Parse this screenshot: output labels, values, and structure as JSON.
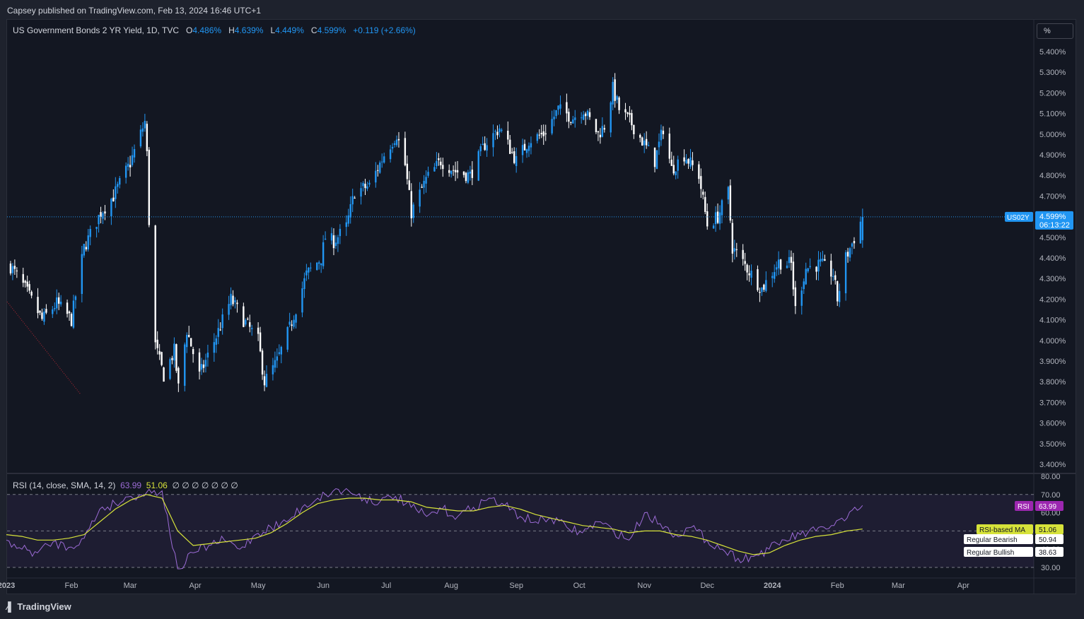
{
  "header": {
    "publisher": "Capsey published on TradingView.com, Feb 13, 2024 16:46 UTC+1"
  },
  "legend": {
    "symbol": "US Government Bonds 2 YR Yield, 1D, TVC",
    "o_label": "O",
    "o_value": "4.486%",
    "h_label": "H",
    "h_value": "4.639%",
    "l_label": "L",
    "l_value": "4.449%",
    "c_label": "C",
    "c_value": "4.599%",
    "change": "+0.119 (+2.66%)"
  },
  "scale_button": "%",
  "price_tag": {
    "ticker": "US02Y",
    "price": "4.599%",
    "countdown": "06:13:22"
  },
  "rsi_legend": {
    "title": "RSI (14, close, SMA, 14, 2)",
    "rsi_value": "63.99",
    "ma_value": "51.06",
    "extras": "∅ ∅ ∅ ∅ ∅ ∅ ∅"
  },
  "rsi_tags": {
    "rsi_label": "RSI",
    "rsi_value": "63.99",
    "ma_label": "RSI-based MA",
    "ma_value": "51.06",
    "bearish_label": "Regular Bearish",
    "bearish_value": "50.94",
    "bullish_label": "Regular Bullish",
    "bullish_value": "38.63"
  },
  "footer": {
    "brand": "TradingView"
  },
  "colors": {
    "up": "#2196f3",
    "down": "#ffffff",
    "rsi": "#9c6bd6",
    "rsi_ma": "#d6e23a",
    "background": "#131722",
    "grid": "#2a2e39"
  },
  "chart_data": {
    "type": "candlestick",
    "price_axis": {
      "ylim": [
        3.37,
        5.52
      ],
      "ticks": [
        "5.400%",
        "5.300%",
        "5.200%",
        "5.100%",
        "5.000%",
        "4.900%",
        "4.800%",
        "4.700%",
        "4.600%",
        "4.500%",
        "4.400%",
        "4.300%",
        "4.200%",
        "4.100%",
        "4.000%",
        "3.900%",
        "3.800%",
        "3.700%",
        "3.600%",
        "3.500%",
        "3.400%"
      ],
      "tick_values": [
        5.4,
        5.3,
        5.2,
        5.1,
        5.0,
        4.9,
        4.8,
        4.7,
        4.6,
        4.5,
        4.4,
        4.3,
        4.2,
        4.1,
        4.0,
        3.9,
        3.8,
        3.7,
        3.6,
        3.5,
        3.4
      ]
    },
    "time_axis": [
      "2023",
      "Feb",
      "Mar",
      "Apr",
      "May",
      "Jun",
      "Jul",
      "Aug",
      "Sep",
      "Oct",
      "Nov",
      "Dec",
      "2024",
      "Feb",
      "Mar",
      "Apr"
    ],
    "close_anchors": [
      [
        "2023-01-03",
        4.36
      ],
      [
        "2023-01-10",
        4.25
      ],
      [
        "2023-01-18",
        4.1
      ],
      [
        "2023-01-25",
        4.18
      ],
      [
        "2023-02-01",
        4.1
      ],
      [
        "2023-02-07",
        4.45
      ],
      [
        "2023-02-15",
        4.62
      ],
      [
        "2023-02-21",
        4.7
      ],
      [
        "2023-03-01",
        4.86
      ],
      [
        "2023-03-08",
        5.06
      ],
      [
        "2023-03-09",
        4.9
      ],
      [
        "2023-03-10",
        4.58
      ],
      [
        "2023-03-13",
        3.98
      ],
      [
        "2023-03-15",
        3.9
      ],
      [
        "2023-03-17",
        3.83
      ],
      [
        "2023-03-22",
        3.95
      ],
      [
        "2023-03-24",
        3.77
      ],
      [
        "2023-03-28",
        4.05
      ],
      [
        "2023-04-03",
        3.83
      ],
      [
        "2023-04-11",
        4.02
      ],
      [
        "2023-04-18",
        4.2
      ],
      [
        "2023-04-24",
        4.1
      ],
      [
        "2023-05-01",
        4.0
      ],
      [
        "2023-05-04",
        3.8
      ],
      [
        "2023-05-10",
        3.9
      ],
      [
        "2023-05-16",
        4.06
      ],
      [
        "2023-05-24",
        4.32
      ],
      [
        "2023-05-31",
        4.4
      ],
      [
        "2023-06-02",
        4.5
      ],
      [
        "2023-06-06",
        4.48
      ],
      [
        "2023-06-12",
        4.55
      ],
      [
        "2023-06-16",
        4.72
      ],
      [
        "2023-06-23",
        4.75
      ],
      [
        "2023-06-30",
        4.9
      ],
      [
        "2023-07-06",
        5.0
      ],
      [
        "2023-07-10",
        4.85
      ],
      [
        "2023-07-13",
        4.62
      ],
      [
        "2023-07-20",
        4.78
      ],
      [
        "2023-07-27",
        4.87
      ],
      [
        "2023-08-03",
        4.82
      ],
      [
        "2023-08-10",
        4.8
      ],
      [
        "2023-08-17",
        4.95
      ],
      [
        "2023-08-24",
        5.03
      ],
      [
        "2023-08-28",
        4.95
      ],
      [
        "2023-09-01",
        4.87
      ],
      [
        "2023-09-07",
        4.97
      ],
      [
        "2023-09-14",
        5.0
      ],
      [
        "2023-09-21",
        5.12
      ],
      [
        "2023-09-28",
        5.08
      ],
      [
        "2023-10-03",
        5.12
      ],
      [
        "2023-10-10",
        5.0
      ],
      [
        "2023-10-13",
        5.04
      ],
      [
        "2023-10-17",
        5.22
      ],
      [
        "2023-10-20",
        5.12
      ],
      [
        "2023-10-26",
        5.05
      ],
      [
        "2023-11-01",
        4.95
      ],
      [
        "2023-11-06",
        4.87
      ],
      [
        "2023-11-10",
        5.03
      ],
      [
        "2023-11-14",
        4.83
      ],
      [
        "2023-11-20",
        4.9
      ],
      [
        "2023-11-27",
        4.8
      ],
      [
        "2023-12-01",
        4.56
      ],
      [
        "2023-12-06",
        4.6
      ],
      [
        "2023-12-11",
        4.72
      ],
      [
        "2023-12-13",
        4.45
      ],
      [
        "2023-12-20",
        4.35
      ],
      [
        "2023-12-27",
        4.25
      ],
      [
        "2024-01-04",
        4.38
      ],
      [
        "2024-01-10",
        4.37
      ],
      [
        "2024-01-12",
        4.15
      ],
      [
        "2024-01-17",
        4.35
      ],
      [
        "2024-01-24",
        4.37
      ],
      [
        "2024-01-30",
        4.32
      ],
      [
        "2024-02-01",
        4.2
      ],
      [
        "2024-02-05",
        4.4
      ],
      [
        "2024-02-08",
        4.47
      ],
      [
        "2024-02-13",
        4.599
      ]
    ],
    "rsi_panel": {
      "ylim": [
        30,
        80
      ],
      "ticks": [
        "80.00",
        "70.00",
        "60.00",
        "50.00",
        "40.00",
        "30.00"
      ],
      "tick_values": [
        80,
        70,
        60,
        50,
        40,
        30
      ],
      "levels": [
        70,
        50,
        30
      ],
      "series": [
        {
          "name": "RSI",
          "values": [
            45,
            40,
            38,
            44,
            41,
            46,
            62,
            65,
            69,
            71,
            72,
            28,
            38,
            42,
            45,
            40,
            48,
            52,
            55,
            63,
            68,
            72,
            72,
            68,
            66,
            69,
            63,
            58,
            62,
            58,
            63,
            68,
            64,
            58,
            55,
            57,
            52,
            49,
            55,
            50,
            45,
            60,
            54,
            48,
            52,
            45,
            40,
            35,
            36,
            40,
            45,
            48,
            50,
            53,
            57,
            63.99
          ]
        },
        {
          "name": "RSI-based MA",
          "values": [
            48,
            47,
            45,
            45,
            46,
            48,
            55,
            62,
            67,
            70,
            68,
            50,
            42,
            43,
            44,
            45,
            46,
            49,
            54,
            60,
            65,
            67,
            68,
            68,
            67,
            67,
            66,
            63,
            62,
            61,
            61,
            63,
            64,
            62,
            59,
            57,
            55,
            53,
            52,
            51,
            49,
            50,
            50,
            48,
            47,
            45,
            42,
            39,
            37,
            38,
            42,
            45,
            47,
            48,
            50,
            51.06
          ]
        }
      ]
    }
  }
}
